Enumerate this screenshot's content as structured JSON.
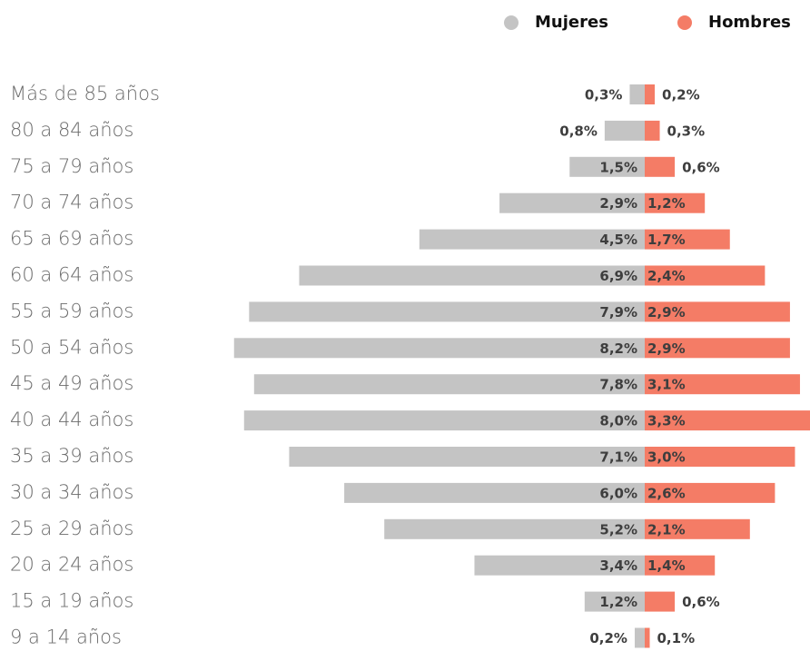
{
  "chart_data": {
    "type": "pyramid",
    "categories": [
      "Más de 85 años",
      "80 a 84 años",
      "75 a 79 años",
      "70 a 74 años",
      "65 a 69 años",
      "60 a 64 años",
      "55 a 59 años",
      "50 a 54 años",
      "45 a 49 años",
      "40 a 44 años",
      "35 a 39 años",
      "30 a 34 años",
      "25 a 29 años",
      "20 a 24 años",
      "15 a 19 años",
      "9 a 14 años"
    ],
    "series": [
      {
        "name": "Mujeres",
        "color": "#c4c4c4",
        "side": "left",
        "values": [
          0.3,
          0.8,
          1.5,
          2.9,
          4.5,
          6.9,
          7.9,
          8.2,
          7.8,
          8.0,
          7.1,
          6.0,
          5.2,
          3.4,
          1.2,
          0.2
        ],
        "value_labels": [
          "0,3%",
          "0,8%",
          "1,5%",
          "2,9%",
          "4,5%",
          "6,9%",
          "7,9%",
          "8,2%",
          "7,8%",
          "8,0%",
          "7,1%",
          "6,0%",
          "5,2%",
          "3,4%",
          "1,2%",
          "0,2%"
        ]
      },
      {
        "name": "Hombres",
        "color": "#f47c66",
        "side": "right",
        "values": [
          0.2,
          0.3,
          0.6,
          1.2,
          1.7,
          2.4,
          2.9,
          2.9,
          3.1,
          3.3,
          3.0,
          2.6,
          2.1,
          1.4,
          0.6,
          0.1
        ],
        "value_labels": [
          "0,2%",
          "0,3%",
          "0,6%",
          "1,2%",
          "1,7%",
          "2,4%",
          "2,9%",
          "2,9%",
          "3,1%",
          "3,3%",
          "3,0%",
          "2,6%",
          "2,1%",
          "1,4%",
          "0,6%",
          "0,1%"
        ]
      }
    ],
    "legend": "top-right"
  }
}
